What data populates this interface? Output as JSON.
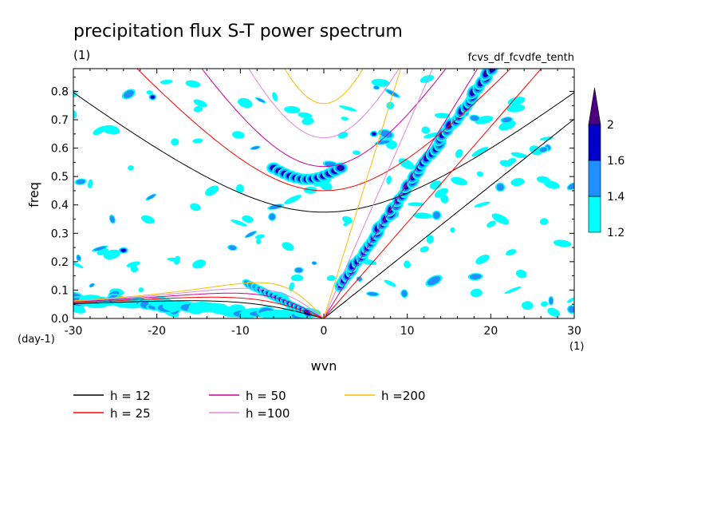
{
  "chart_data": {
    "type": "heatmap",
    "title": "precipitation flux S-T power spectrum",
    "title_units": "(1)",
    "subtitle_right": "fcvs_df_fcvdfe_tenth",
    "xlabel": "wvn",
    "ylabel": "freq",
    "x_units": "(1)",
    "y_units": "(day-1)",
    "xlim": [
      -30,
      30
    ],
    "ylim": [
      0,
      0.88
    ],
    "x_ticks": [
      -30,
      -20,
      -10,
      0,
      10,
      20,
      30
    ],
    "x_tick_labels": [
      "-30",
      "-20",
      "-10",
      "0",
      "10",
      "20",
      "30"
    ],
    "y_ticks": [
      0.0,
      0.1,
      0.2,
      0.3,
      0.4,
      0.5,
      0.6,
      0.7,
      0.8
    ],
    "y_tick_labels": [
      "0.0",
      "0.1",
      "0.2",
      "0.3",
      "0.4",
      "0.5",
      "0.6",
      "0.7",
      "0.8"
    ],
    "colorbar": {
      "levels": [
        1.2,
        1.4,
        1.6,
        2
      ],
      "level_labels": [
        "1.2",
        "1.4",
        "1.6",
        "2"
      ],
      "colors": [
        "#00ffff",
        "#1e90ff",
        "#0000cd",
        "#4b0082"
      ]
    },
    "legend": [
      {
        "label": "h = 12",
        "h": 12,
        "color": "#000000"
      },
      {
        "label": "h = 25",
        "h": 25,
        "color": "#ff0000"
      },
      {
        "label": "h = 50",
        "h": 50,
        "color": "#cc0099"
      },
      {
        "label": "h =100",
        "h": 100,
        "color": "#dd88dd"
      },
      {
        "label": "h =200",
        "h": 200,
        "color": "#ffbb00"
      }
    ],
    "dispersion_curves": {
      "kelvin": {
        "12": 0.0229,
        "25": 0.0331,
        "50": 0.0468,
        "100": 0.0661,
        "200": 0.0935
      },
      "n1_minimum": {
        "12": 0.37,
        "25": 0.44,
        "50": 0.52,
        "100": 0.62,
        "200": 0.74
      },
      "rossby_peak": {
        "12": 0.064,
        "25": 0.075,
        "50": 0.089,
        "100": 0.104,
        "200": 0.123
      }
    },
    "features": [
      {
        "name": "kelvin-band",
        "from": [
          2,
          0.12
        ],
        "to": [
          20,
          0.88
        ]
      },
      {
        "name": "n1-band",
        "center": [
          -3,
          0.51
        ]
      },
      {
        "name": "rossby-band",
        "from": [
          -30,
          0.06
        ],
        "to": [
          -2,
          0.01
        ]
      }
    ]
  }
}
